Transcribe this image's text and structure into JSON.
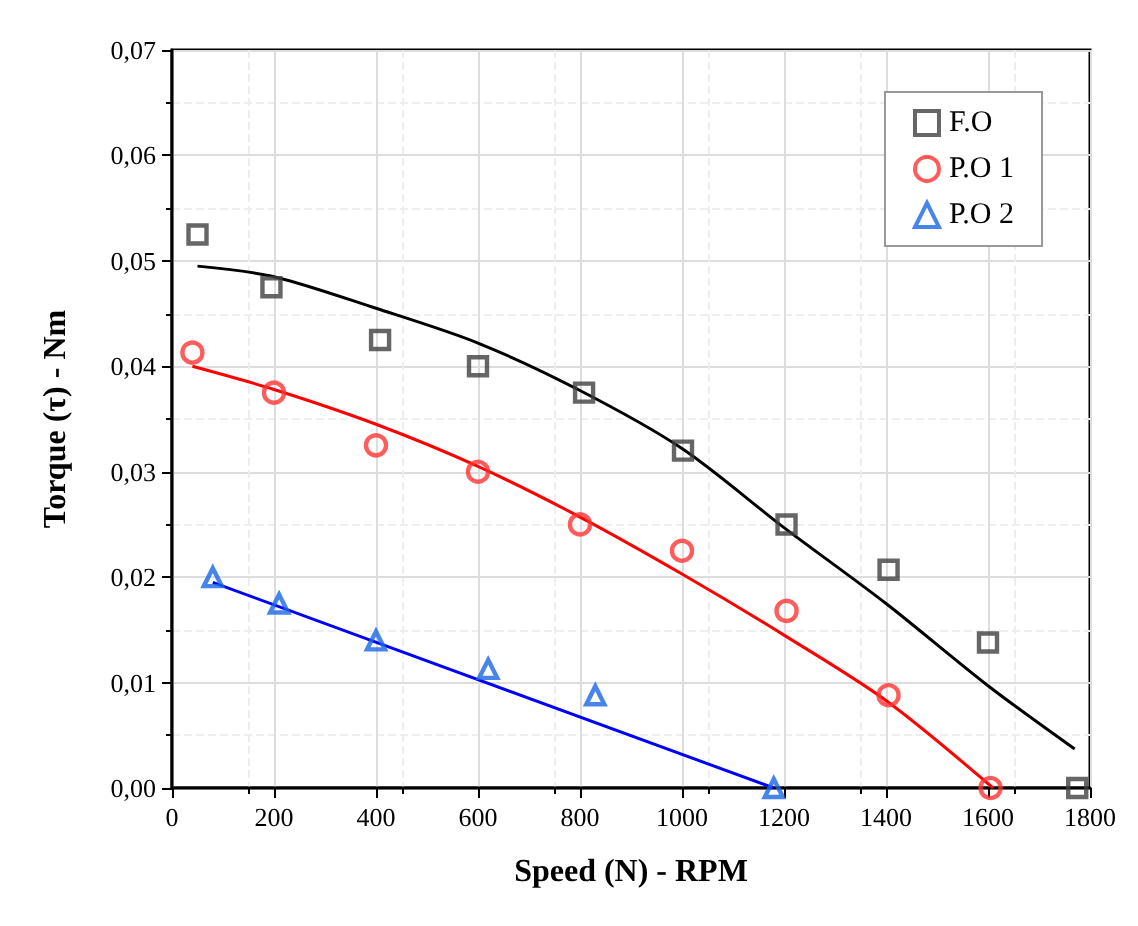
{
  "chart_data": {
    "type": "scatter",
    "xlabel": "Speed (N) - RPM",
    "ylabel": "Torque (τ) - Nm",
    "xlim": [
      0,
      1800
    ],
    "xticks": [
      0,
      200,
      400,
      600,
      800,
      1000,
      1200,
      1400,
      1600,
      1800
    ],
    "ylim": [
      0,
      0.07
    ],
    "yticks": [
      {
        "value": 0,
        "label": "0,00"
      },
      {
        "value": 0.01,
        "label": "0,01"
      },
      {
        "value": 0.02,
        "label": "0,02"
      },
      {
        "value": 0.03,
        "label": "0,03"
      },
      {
        "value": 0.04,
        "label": "0,04"
      },
      {
        "value": 0.05,
        "label": "0,05"
      },
      {
        "value": 0.06,
        "label": "0,06"
      },
      {
        "value": 0.07,
        "label": "0,07"
      }
    ],
    "grid": true,
    "legend": "top right",
    "series": [
      {
        "name": "F.O",
        "color": "#404040",
        "marker": "square",
        "x": [
          50,
          195,
          408,
          600,
          808,
          1002,
          1205,
          1405,
          1600,
          1775
        ],
        "values": [
          0.0525,
          0.0475,
          0.0425,
          0.04,
          0.0375,
          0.032,
          0.025,
          0.0207,
          0.0138,
          0
        ]
      },
      {
        "name": "P.O 1",
        "color": "#ff3333",
        "marker": "circle",
        "x": [
          40,
          200,
          400,
          600,
          800,
          1000,
          1205,
          1405,
          1605
        ],
        "values": [
          0.0413,
          0.0375,
          0.0325,
          0.03,
          0.025,
          0.0225,
          0.0168,
          0.0088,
          0
        ]
      },
      {
        "name": "P.O 2",
        "color": "#1a66e6",
        "marker": "triangle",
        "x": [
          80,
          210,
          400,
          620,
          830,
          1180
        ],
        "values": [
          0.02,
          0.0175,
          0.014,
          0.0113,
          0.0088,
          0
        ]
      },
      {
        "type": "line",
        "color": "#000000",
        "x": [
          50,
          200,
          400,
          600,
          800,
          1000,
          1200,
          1400,
          1600,
          1770
        ],
        "values": [
          0.0495,
          0.0485,
          0.0455,
          0.0422,
          0.0377,
          0.0322,
          0.0247,
          0.0175,
          0.0097,
          0.0037
        ]
      },
      {
        "type": "line",
        "color": "#ff0000",
        "x": [
          40,
          200,
          400,
          600,
          800,
          1000,
          1200,
          1400,
          1610
        ],
        "values": [
          0.04,
          0.0378,
          0.0345,
          0.0305,
          0.0257,
          0.0203,
          0.0145,
          0.0083,
          0
        ]
      },
      {
        "type": "line",
        "color": "#0000ff",
        "x": [
          80,
          1180
        ],
        "values": [
          0.0195,
          0
        ]
      }
    ]
  }
}
